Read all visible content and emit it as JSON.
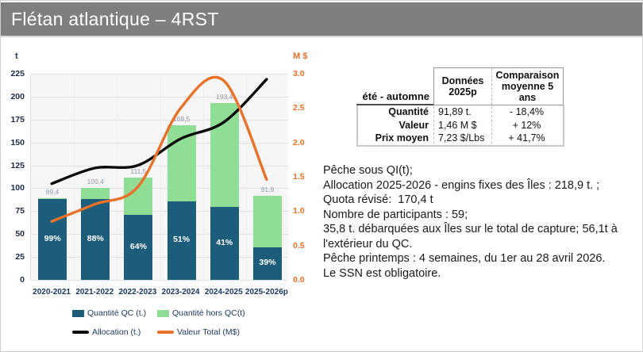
{
  "title": "Flétan atlantique – 4RST",
  "accent_colors": {
    "title_bar": "#7f7f7f",
    "qc_blue": "#1d5d7c",
    "hors_qc_green": "#90dd95",
    "allocation_black": "#0d0d0d",
    "valeur_orange": "#e8722a"
  },
  "chart_data": {
    "type": "bar",
    "subtype": "stacked-bars-with-two-line-series",
    "categories": [
      "2020-2021",
      "2021-2022",
      "2022-2023",
      "2023-2024",
      "2024-2025",
      "2025-2026p"
    ],
    "series": [
      {
        "name": "Quantité QC (t.)",
        "type": "bar",
        "color": "#1d5d7c",
        "axis": "left",
        "values": [
          88.5,
          88.4,
          71.4,
          85.9,
          79.3,
          35.8
        ]
      },
      {
        "name": "Quantité hors QC(t)",
        "type": "bar",
        "color": "#90dd95",
        "axis": "left",
        "values": [
          0.9,
          12.0,
          40.1,
          82.6,
          114.1,
          56.1
        ]
      },
      {
        "name": "Allocation (t.)",
        "type": "line",
        "color": "#0d0d0d",
        "axis": "left",
        "values": [
          105,
          122,
          125,
          154,
          172,
          218.9
        ]
      },
      {
        "name": "Valeur Total (M$)",
        "type": "line",
        "color": "#e8722a",
        "axis": "right",
        "values": [
          0.85,
          1.1,
          1.35,
          2.5,
          2.9,
          1.46
        ]
      }
    ],
    "bar_total_labels": [
      "89,4",
      "100,4",
      "111,5",
      "168,5",
      "193,4",
      "91,9"
    ],
    "bar_pct_labels": [
      "99%",
      "88%",
      "64%",
      "51%",
      "41%",
      "39%"
    ],
    "left_axis": {
      "label": "t",
      "min": 0,
      "max": 225,
      "step": 25
    },
    "right_axis": {
      "label": "M $",
      "min": 0,
      "max": 3.0,
      "step": 0.5
    },
    "grid": true,
    "legend_position": "bottom"
  },
  "table": {
    "corner_label": "été - automne",
    "col1_header": "Données 2025p",
    "col2_header": "Comparaison moyenne 5 ans",
    "rows": [
      {
        "label": "Quantité",
        "value": "91,89 t.",
        "comparison": "- 18,4%"
      },
      {
        "label": "Valeur",
        "value": "1,46 M $",
        "comparison": "+ 12%"
      },
      {
        "label": "Prix moyen",
        "value": "7,23 $/Lbs",
        "comparison": "+ 41,7%"
      }
    ]
  },
  "notes": {
    "lines": [
      "Pêche sous QI(t);",
      "Allocation 2025-2026 - engins fixes des Îles : 218,9 t. ;",
      "Quota révisé:  170,4 t",
      "Nombre de participants : 59;",
      "35,8 t. débarquées aux Îles sur le total de capture; 56,1t à l'extérieur du QC.",
      "Pêche printemps : 4 semaines, du 1er au 28 avril 2026.",
      "Le SSN est obligatoire."
    ]
  }
}
